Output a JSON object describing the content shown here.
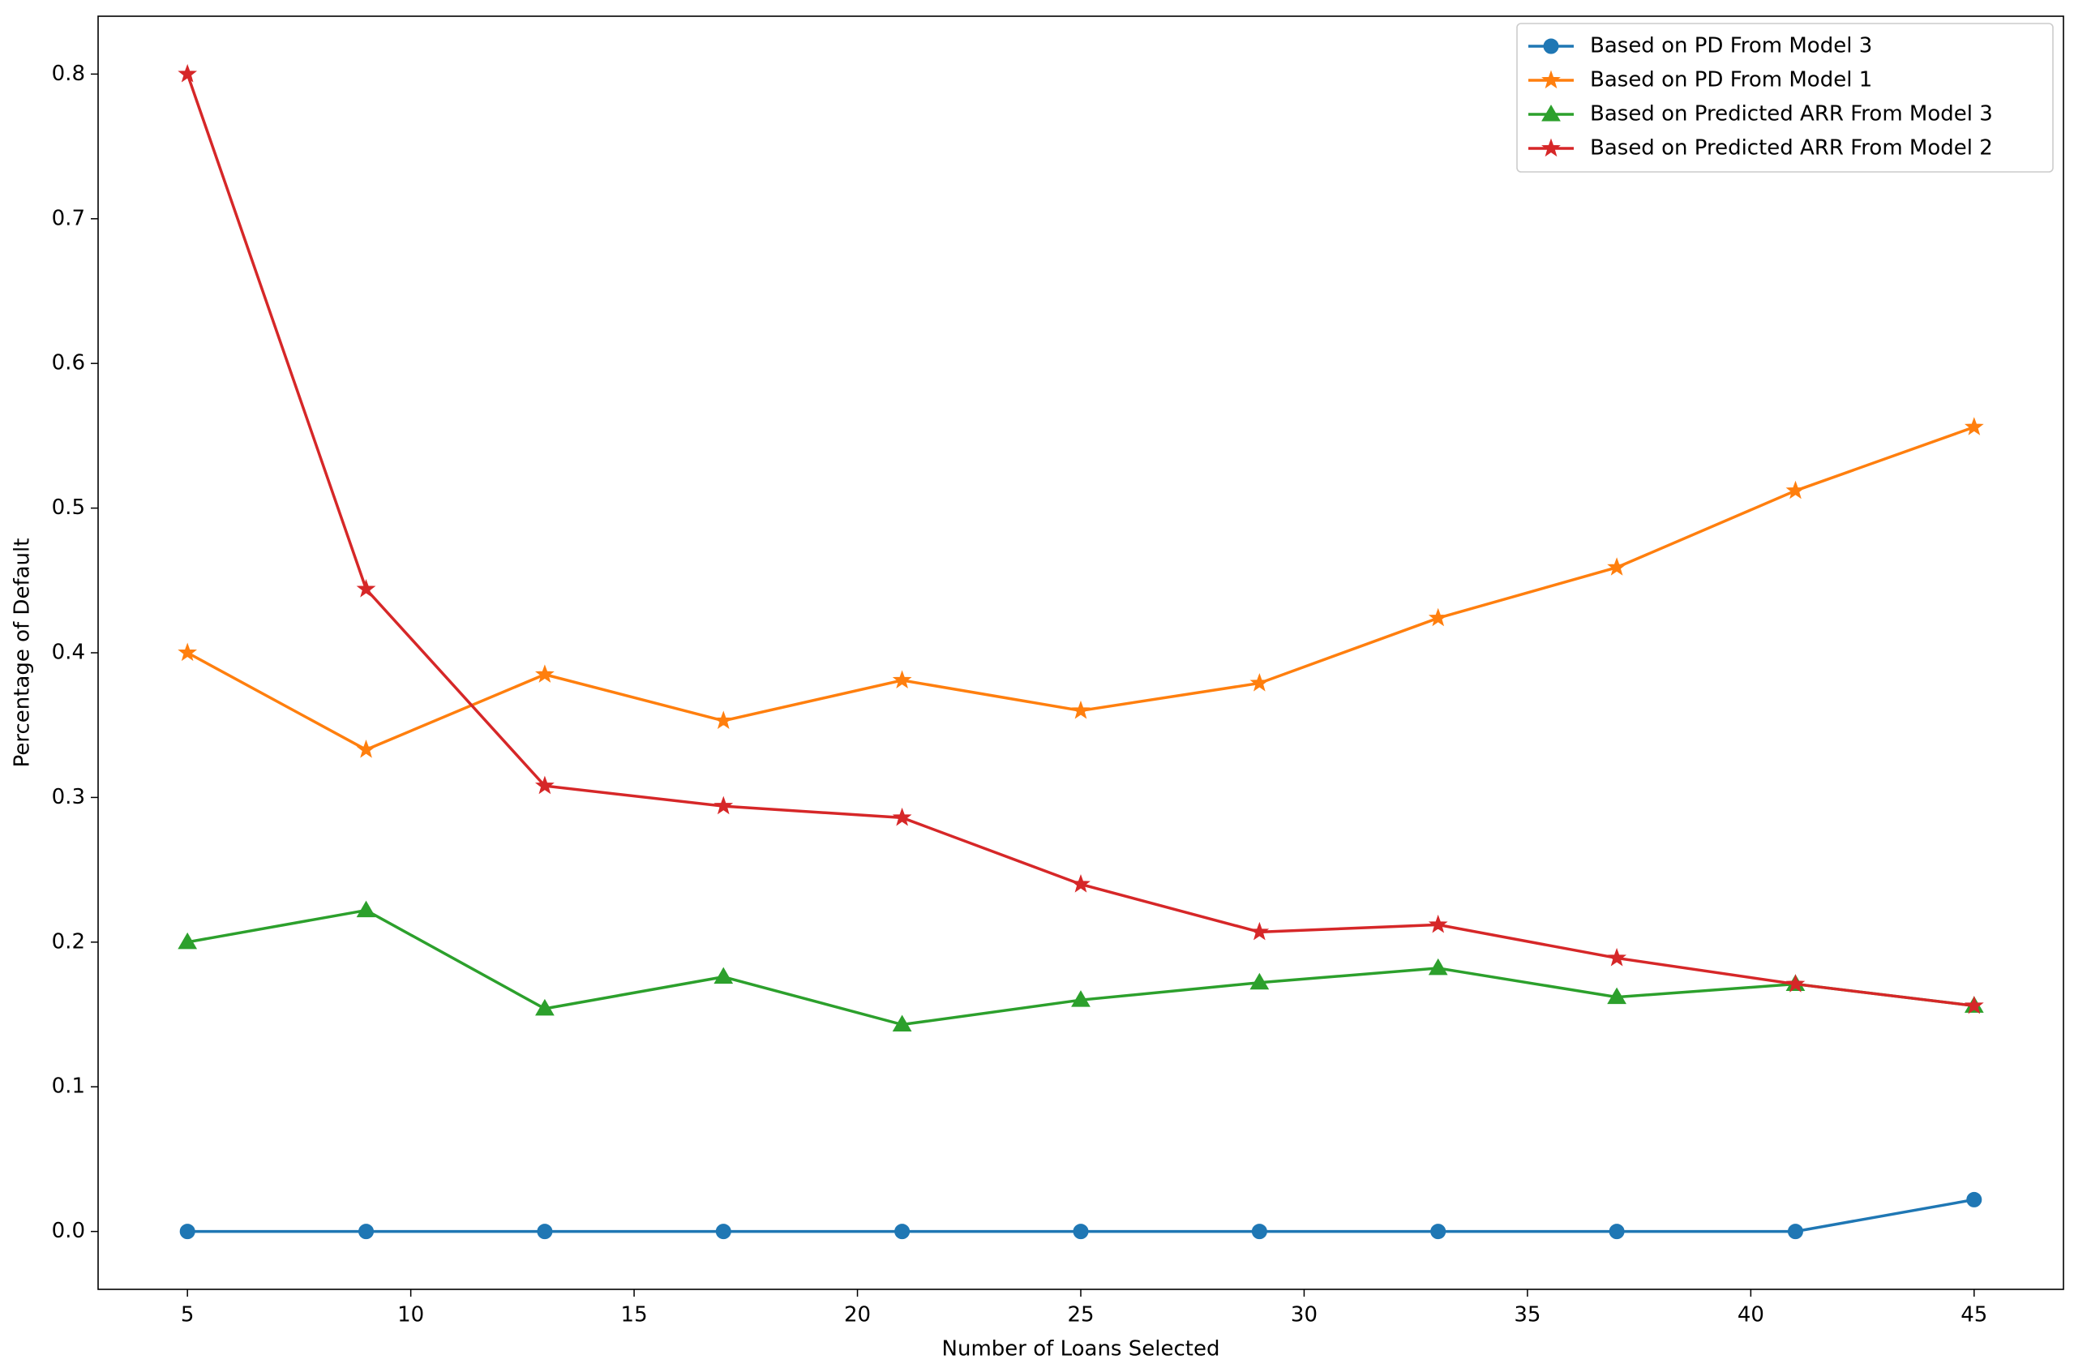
{
  "chart_data": {
    "type": "line",
    "x_label": "Number of Loans Selected",
    "y_label": "Percentage of Default",
    "x": [
      5,
      9,
      13,
      17,
      21,
      25,
      29,
      33,
      37,
      41,
      45
    ],
    "xlim": [
      3,
      47
    ],
    "xticks": [
      5,
      10,
      15,
      20,
      25,
      30,
      35,
      40,
      45
    ],
    "ylim": [
      -0.04,
      0.84
    ],
    "yticks": [
      {
        "value": 0,
        "label": "0.0"
      },
      0.1,
      0.2,
      0.3,
      0.4,
      0.5,
      0.6,
      0.7,
      0.8
    ],
    "legend": "upper right",
    "series": [
      {
        "name": "Based on PD From Model 3",
        "color": "#1f77b4",
        "marker": "circle",
        "values": [
          0,
          0,
          0,
          0,
          0,
          0,
          0,
          0,
          0,
          0,
          0.022
        ]
      },
      {
        "name": "Based on PD From Model 1",
        "color": "#ff7f0e",
        "marker": "star",
        "values": [
          0.4,
          0.333,
          0.385,
          0.353,
          0.381,
          0.36,
          0.379,
          0.424,
          0.459,
          0.512,
          0.556
        ]
      },
      {
        "name": "Based on Predicted ARR From Model 3",
        "color": "#2ca02c",
        "marker": "triangle",
        "values": [
          0.2,
          0.222,
          0.154,
          0.176,
          0.143,
          0.16,
          0.172,
          0.182,
          0.162,
          0.171,
          0.156
        ]
      },
      {
        "name": "Based on Predicted ARR From Model 2",
        "color": "#d62728",
        "marker": "star",
        "values": [
          0.8,
          0.444,
          0.308,
          0.294,
          0.286,
          0.24,
          0.207,
          0.212,
          0.189,
          0.171,
          0.156
        ]
      }
    ]
  }
}
